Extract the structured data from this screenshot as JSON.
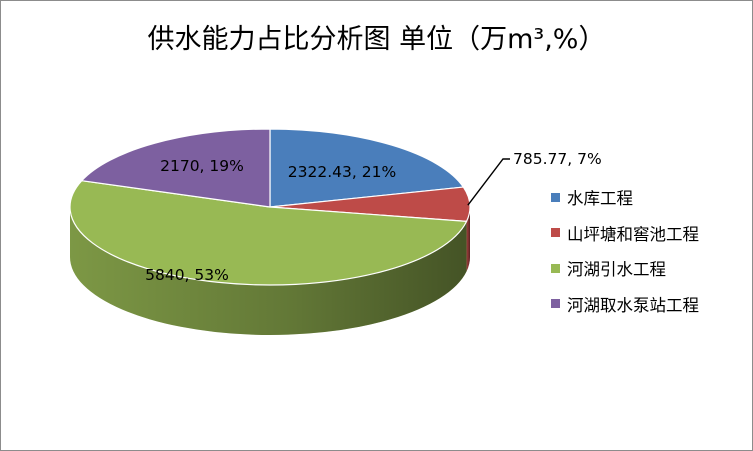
{
  "title": "供水能力占比分析图 单位（万m³,%）",
  "chart_data": {
    "type": "pie",
    "title": "供水能力占比分析图 单位（万m³,%）",
    "labels": [
      "水库工程",
      "山坪塘和窖池工程",
      "河湖引水工程",
      "河湖取水泵站工程"
    ],
    "values": [
      2322.43,
      785.77,
      5840,
      2170
    ],
    "percents": [
      21,
      7,
      53,
      19
    ],
    "data_labels": [
      "2322.43, 21%",
      "785.77, 7%",
      "5840, 53%",
      "2170, 19%"
    ],
    "colors": [
      "#4a7ebb",
      "#be4b48",
      "#98b954",
      "#7d60a0"
    ],
    "legend_position": "right"
  }
}
